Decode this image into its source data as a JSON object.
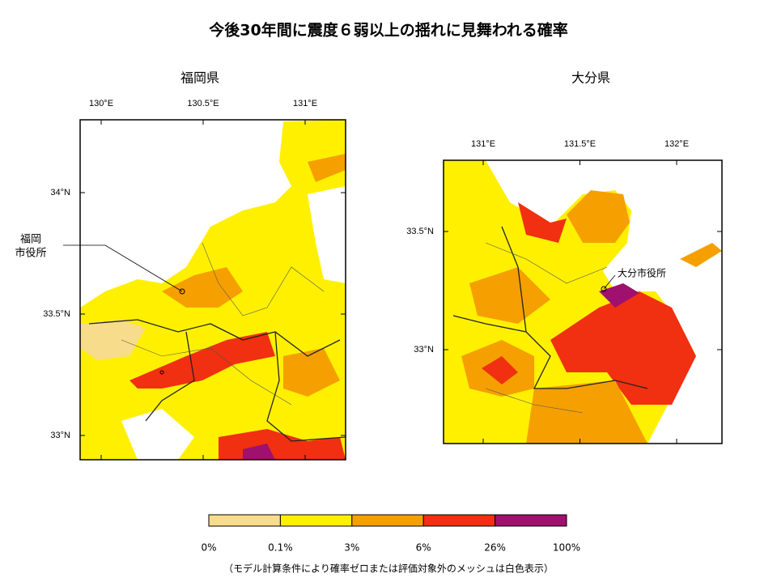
{
  "title": "今後30年間に震度６弱以上の揺れに見舞われる確率",
  "maps": [
    {
      "name": "福岡県",
      "x_ticks": [
        "130°E",
        "130.5°E",
        "131°E"
      ],
      "y_ticks": [
        "34°N",
        "33.5°N",
        "33°N"
      ],
      "annotation": [
        "福岡",
        "市役所"
      ]
    },
    {
      "name": "大分県",
      "x_ticks": [
        "131°E",
        "131.5°E",
        "132°E"
      ],
      "y_ticks": [
        "33.5°N",
        "33°N"
      ],
      "annotation": [
        "大分市役所"
      ]
    }
  ],
  "legend": {
    "colors": [
      "#f7dc8c",
      "#fff000",
      "#f5a000",
      "#f03010",
      "#a0106e"
    ],
    "labels": [
      "0%",
      "0.1%",
      "3%",
      "6%",
      "26%",
      "100%"
    ]
  },
  "note": "（モデル計算条件により確率ゼロまたは評価対象外のメッシュは白色表示）"
}
